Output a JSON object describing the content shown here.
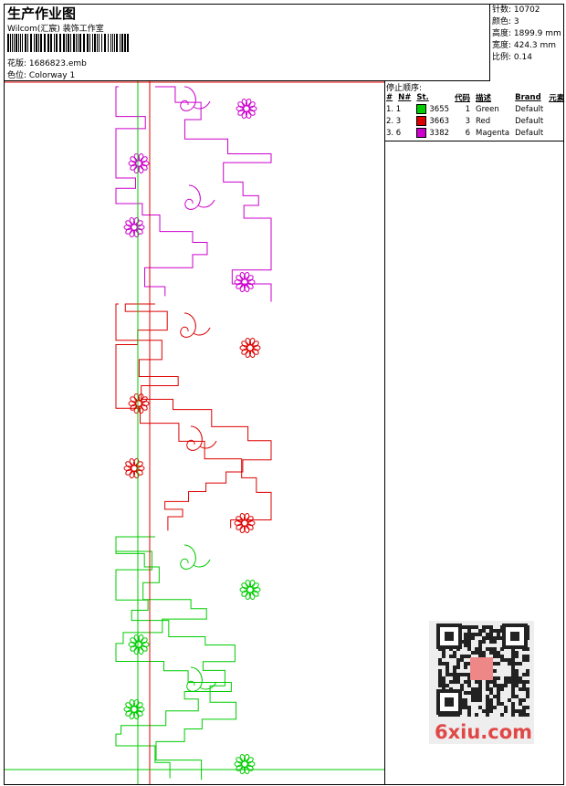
{
  "header": {
    "title": "生产作业图",
    "subtitle": "Wilcom(汇宸) 装饰工作室",
    "design": "花版: 1686823.emb",
    "colorway": "色位: Colorway 1"
  },
  "info": [
    "针数: 10702",
    "颜色: 3",
    "高度: 1899.9 mm",
    "宽度: 424.3 mm",
    "比例: 0.14"
  ],
  "stops": {
    "title": "停止顺序:",
    "columns": [
      "#",
      "N#",
      "St.",
      "代码",
      "描述",
      "Brand",
      "元素"
    ],
    "rows": [
      {
        "index": "1. 1",
        "swatch": "#00cc00",
        "stitches": "3655",
        "code": "1",
        "description": "Green",
        "brand": "Default"
      },
      {
        "index": "2. 3",
        "swatch": "#dd0000",
        "stitches": "3663",
        "code": "3",
        "description": "Red",
        "brand": "Default"
      },
      {
        "index": "3. 6",
        "swatch": "#cc00cc",
        "stitches": "3382",
        "code": "6",
        "description": "Magenta",
        "brand": "Default"
      }
    ]
  },
  "watermark": "6xiu.com"
}
